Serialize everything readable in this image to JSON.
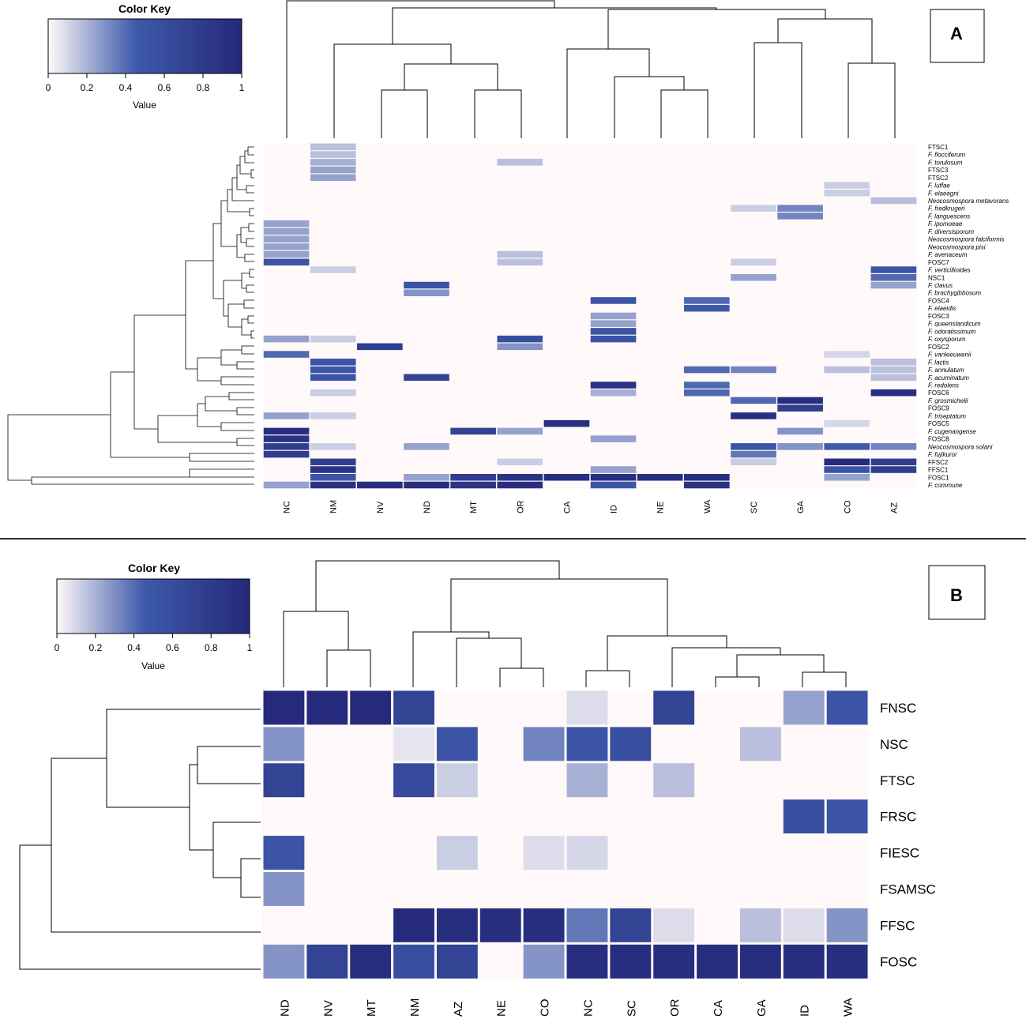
{
  "colors": {
    "low": "#fff9f9",
    "mid": "#3e5aaa",
    "high": "#25287a",
    "line": "#000000",
    "divider": "#333333"
  },
  "color_key": {
    "title": "Color Key",
    "xlabel": "Value",
    "ticks": [
      "0",
      "0.2",
      "0.4",
      "0.6",
      "0.8",
      "1"
    ]
  },
  "chart_data": [
    {
      "type": "heatmap",
      "panel_label": "A",
      "columns": [
        "NC",
        "NM",
        "NV",
        "ND",
        "MT",
        "OR",
        "CA",
        "ID",
        "NE",
        "WA",
        "SC",
        "GA",
        "CO",
        "AZ"
      ],
      "rows": [
        "FTSC1",
        "F. flocciferum",
        "F. torulosum",
        "FTSC3",
        "FTSC2",
        "F. luffae",
        "F. elaeagni",
        "Neocosmospora metavorans",
        "F. fredkrugeri",
        "F. languescens",
        "F. ipomoeae",
        "F. diversisporum",
        "Neocosmospora falciformis",
        "Neocosmospora pisi",
        "F. avenaceum",
        "FOSC7",
        "F. verticillioides",
        "NSC1",
        "F. clavus",
        "F. brachygibbosum",
        "FOSC4",
        "F. elaeidis",
        "FOSC3",
        "F. queenslandicum",
        "F. odoratissimum",
        "F. oxysporum",
        "FOSC2",
        "F. vanleeuwenii",
        "F. lactis",
        "F. annulatum",
        "F. acuminatum",
        "F. redolens",
        "FOSC6",
        "F. grosmichelii",
        "FOSC9",
        "F. triseptatum",
        "FOSC5",
        "F. cugenangense",
        "FOSC8",
        "Neocosmospora solani",
        "F. fujikuroi",
        "FFSC2",
        "FFSC1",
        "FOSC1",
        "F. commune"
      ],
      "values": [
        [
          0,
          0.2,
          0,
          0,
          0,
          0,
          0,
          0,
          0,
          0,
          0,
          0,
          0,
          0
        ],
        [
          0,
          0.2,
          0,
          0,
          0,
          0,
          0,
          0,
          0,
          0,
          0,
          0,
          0,
          0
        ],
        [
          0,
          0.25,
          0,
          0,
          0,
          0.2,
          0,
          0,
          0,
          0,
          0,
          0,
          0,
          0
        ],
        [
          0,
          0.3,
          0,
          0,
          0,
          0,
          0,
          0,
          0,
          0,
          0,
          0,
          0,
          0
        ],
        [
          0,
          0.3,
          0,
          0,
          0,
          0,
          0,
          0,
          0,
          0,
          0,
          0,
          0,
          0
        ],
        [
          0,
          0,
          0,
          0,
          0,
          0,
          0,
          0,
          0,
          0,
          0,
          0,
          0.15,
          0
        ],
        [
          0,
          0,
          0,
          0,
          0,
          0,
          0,
          0,
          0,
          0,
          0,
          0,
          0.15,
          0
        ],
        [
          0,
          0,
          0,
          0,
          0,
          0,
          0,
          0,
          0,
          0,
          0,
          0,
          0,
          0.2
        ],
        [
          0,
          0,
          0,
          0,
          0,
          0,
          0,
          0,
          0,
          0,
          0.15,
          0.4,
          0,
          0
        ],
        [
          0,
          0,
          0,
          0,
          0,
          0,
          0,
          0,
          0,
          0,
          0,
          0.4,
          0,
          0
        ],
        [
          0.3,
          0,
          0,
          0,
          0,
          0,
          0,
          0,
          0,
          0,
          0,
          0,
          0,
          0
        ],
        [
          0.3,
          0,
          0,
          0,
          0,
          0,
          0,
          0,
          0,
          0,
          0,
          0,
          0,
          0
        ],
        [
          0.3,
          0,
          0,
          0,
          0,
          0,
          0,
          0,
          0,
          0,
          0,
          0,
          0,
          0
        ],
        [
          0.3,
          0,
          0,
          0,
          0,
          0,
          0,
          0,
          0,
          0,
          0,
          0,
          0,
          0
        ],
        [
          0.3,
          0,
          0,
          0,
          0,
          0.2,
          0,
          0,
          0,
          0,
          0,
          0,
          0,
          0
        ],
        [
          0.6,
          0,
          0,
          0,
          0,
          0.2,
          0,
          0,
          0,
          0,
          0.15,
          0,
          0,
          0
        ],
        [
          0,
          0.15,
          0,
          0,
          0,
          0,
          0,
          0,
          0,
          0,
          0,
          0,
          0,
          0.6
        ],
        [
          0,
          0,
          0,
          0,
          0,
          0,
          0,
          0,
          0,
          0,
          0.3,
          0,
          0,
          0.5
        ],
        [
          0,
          0,
          0,
          0.6,
          0,
          0,
          0,
          0,
          0,
          0,
          0,
          0,
          0,
          0.3
        ],
        [
          0,
          0,
          0,
          0.35,
          0,
          0,
          0,
          0,
          0,
          0,
          0,
          0,
          0,
          0
        ],
        [
          0,
          0,
          0,
          0,
          0,
          0,
          0,
          0.6,
          0,
          0.5,
          0,
          0,
          0,
          0
        ],
        [
          0,
          0,
          0,
          0,
          0,
          0,
          0,
          0,
          0,
          0.55,
          0,
          0,
          0,
          0
        ],
        [
          0,
          0,
          0,
          0,
          0,
          0,
          0,
          0.3,
          0,
          0,
          0,
          0,
          0,
          0
        ],
        [
          0,
          0,
          0,
          0,
          0,
          0,
          0,
          0.3,
          0,
          0,
          0,
          0,
          0,
          0
        ],
        [
          0,
          0,
          0,
          0,
          0,
          0,
          0,
          0.6,
          0,
          0,
          0,
          0,
          0,
          0
        ],
        [
          0.3,
          0.15,
          0,
          0,
          0,
          0.65,
          0,
          0.6,
          0,
          0,
          0,
          0,
          0,
          0
        ],
        [
          0,
          0,
          0.8,
          0,
          0,
          0.35,
          0,
          0,
          0,
          0,
          0,
          0,
          0,
          0
        ],
        [
          0.5,
          0,
          0,
          0,
          0,
          0,
          0,
          0,
          0,
          0,
          0,
          0,
          0.12,
          0
        ],
        [
          0,
          0.6,
          0,
          0,
          0,
          0,
          0,
          0,
          0,
          0,
          0,
          0,
          0,
          0.2
        ],
        [
          0,
          0.6,
          0,
          0,
          0,
          0,
          0,
          0,
          0,
          0.5,
          0.4,
          0,
          0.2,
          0.2
        ],
        [
          0,
          0.6,
          0,
          0.75,
          0,
          0,
          0,
          0,
          0,
          0,
          0,
          0,
          0,
          0.2
        ],
        [
          0,
          0,
          0,
          0,
          0,
          0,
          0,
          0.9,
          0,
          0.5,
          0,
          0,
          0,
          0
        ],
        [
          0,
          0.15,
          0,
          0,
          0,
          0,
          0,
          0.25,
          0,
          0.5,
          0,
          0,
          0,
          0.95
        ],
        [
          0,
          0,
          0,
          0,
          0,
          0,
          0,
          0,
          0,
          0,
          0.5,
          0.95,
          0,
          0
        ],
        [
          0,
          0,
          0,
          0,
          0,
          0,
          0,
          0,
          0,
          0,
          0,
          0.8,
          0,
          0
        ],
        [
          0.3,
          0.15,
          0,
          0,
          0,
          0,
          0,
          0,
          0,
          0,
          0.95,
          0,
          0,
          0
        ],
        [
          0,
          0,
          0,
          0,
          0,
          0,
          0.95,
          0,
          0,
          0,
          0,
          0,
          0.12,
          0
        ],
        [
          0.95,
          0,
          0,
          0,
          0.75,
          0.3,
          0,
          0,
          0,
          0,
          0,
          0.35,
          0,
          0
        ],
        [
          0.9,
          0,
          0,
          0,
          0,
          0,
          0,
          0.3,
          0,
          0,
          0,
          0,
          0,
          0
        ],
        [
          0.8,
          0.15,
          0,
          0.3,
          0,
          0,
          0,
          0,
          0,
          0,
          0.6,
          0.35,
          0.55,
          0.4
        ],
        [
          0.8,
          0,
          0,
          0,
          0,
          0,
          0,
          0,
          0,
          0,
          0.45,
          0,
          0,
          0
        ],
        [
          0,
          0.8,
          0,
          0,
          0,
          0.15,
          0,
          0,
          0,
          0,
          0.15,
          0,
          0.98,
          0.8
        ],
        [
          0,
          0.9,
          0,
          0,
          0,
          0,
          0,
          0.3,
          0,
          0,
          0,
          0,
          0.6,
          0.8
        ],
        [
          0,
          0.6,
          0,
          0.3,
          0.8,
          0.9,
          0.95,
          0.95,
          0.95,
          0.95,
          0,
          0,
          0.3,
          0
        ],
        [
          0.3,
          0.9,
          0.95,
          0.95,
          0.9,
          0.95,
          0,
          0.6,
          0,
          0.9,
          0,
          0,
          0,
          0
        ]
      ]
    },
    {
      "type": "heatmap",
      "panel_label": "B",
      "columns": [
        "ND",
        "NV",
        "MT",
        "NM",
        "AZ",
        "NE",
        "CO",
        "NC",
        "SC",
        "OR",
        "CA",
        "GA",
        "ID",
        "WA"
      ],
      "rows": [
        "FNSC",
        "NSC",
        "FTSC",
        "FRSC",
        "FIESC",
        "FSAMSC",
        "FFSC",
        "FOSC"
      ],
      "values": [
        [
          0.98,
          0.98,
          0.98,
          0.75,
          0,
          0,
          0,
          0.1,
          0,
          0.75,
          0,
          0,
          0.3,
          0.6
        ],
        [
          0.35,
          0,
          0,
          0.07,
          0.6,
          0,
          0.4,
          0.6,
          0.65,
          0,
          0,
          0.2,
          0,
          0
        ],
        [
          0.75,
          0,
          0,
          0.7,
          0.15,
          0,
          0,
          0.25,
          0,
          0.2,
          0,
          0,
          0,
          0
        ],
        [
          0,
          0,
          0,
          0,
          0,
          0,
          0,
          0,
          0,
          0,
          0,
          0,
          0.65,
          0.6
        ],
        [
          0.6,
          0,
          0,
          0,
          0.15,
          0,
          0.1,
          0.12,
          0,
          0,
          0,
          0,
          0,
          0
        ],
        [
          0.35,
          0,
          0,
          0,
          0,
          0,
          0,
          0,
          0,
          0,
          0,
          0,
          0,
          0
        ],
        [
          0,
          0,
          0,
          0.98,
          0.95,
          0.95,
          0.95,
          0.45,
          0.75,
          0.1,
          0,
          0.2,
          0.1,
          0.35
        ],
        [
          0.35,
          0.75,
          0.95,
          0.65,
          0.75,
          0,
          0.35,
          0.95,
          0.95,
          0.95,
          0.95,
          0.95,
          0.95,
          0.95
        ]
      ]
    }
  ]
}
